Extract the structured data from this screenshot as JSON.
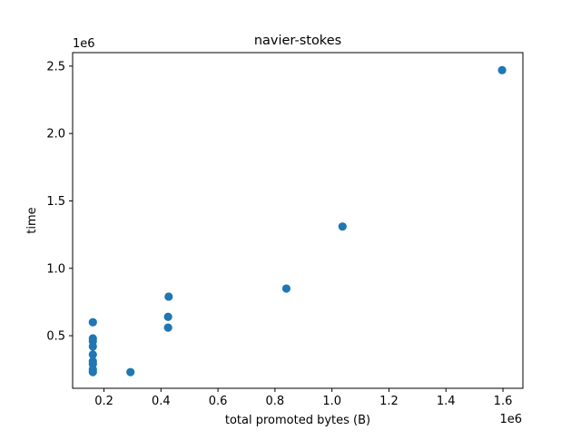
{
  "chart_data": {
    "type": "scatter",
    "title": "navier-stokes",
    "xlabel": "total promoted bytes (B)",
    "ylabel": "time",
    "x_offset_label": "1e6",
    "y_offset_label": "1e6",
    "xlim": [
      0.09,
      1.67
    ],
    "ylim": [
      0.11,
      2.6
    ],
    "x_ticks": [
      {
        "value": 0.2,
        "label": "0.2"
      },
      {
        "value": 0.4,
        "label": "0.4"
      },
      {
        "value": 0.6,
        "label": "0.6"
      },
      {
        "value": 0.8,
        "label": "0.8"
      },
      {
        "value": 1.0,
        "label": "1.0"
      },
      {
        "value": 1.2,
        "label": "1.2"
      },
      {
        "value": 1.4,
        "label": "1.4"
      },
      {
        "value": 1.6,
        "label": "1.6"
      }
    ],
    "y_ticks": [
      {
        "value": 0.5,
        "label": "0.5"
      },
      {
        "value": 1.0,
        "label": "1.0"
      },
      {
        "value": 1.5,
        "label": "1.5"
      },
      {
        "value": 2.0,
        "label": "2.0"
      },
      {
        "value": 2.5,
        "label": "2.5"
      }
    ],
    "grid": false,
    "marker_color": "#1f77b4",
    "points": [
      {
        "x": 0.161,
        "y": 0.6
      },
      {
        "x": 0.161,
        "y": 0.48
      },
      {
        "x": 0.161,
        "y": 0.46
      },
      {
        "x": 0.161,
        "y": 0.42
      },
      {
        "x": 0.161,
        "y": 0.36
      },
      {
        "x": 0.161,
        "y": 0.31
      },
      {
        "x": 0.161,
        "y": 0.29
      },
      {
        "x": 0.161,
        "y": 0.25
      },
      {
        "x": 0.161,
        "y": 0.23
      },
      {
        "x": 0.293,
        "y": 0.23
      },
      {
        "x": 0.427,
        "y": 0.79
      },
      {
        "x": 0.425,
        "y": 0.64
      },
      {
        "x": 0.425,
        "y": 0.56
      },
      {
        "x": 0.84,
        "y": 0.85
      },
      {
        "x": 1.037,
        "y": 1.31
      },
      {
        "x": 1.597,
        "y": 2.47
      }
    ]
  }
}
